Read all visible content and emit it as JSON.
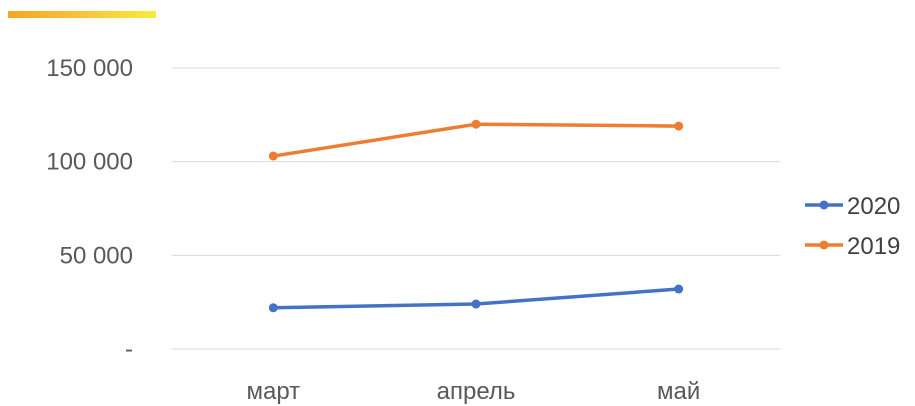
{
  "chart_data": {
    "type": "line",
    "categories": [
      "март",
      "апрель",
      "май"
    ],
    "series": [
      {
        "name": "2020",
        "values": [
          22000,
          24000,
          32000
        ],
        "color": "#4472C4"
      },
      {
        "name": "2019",
        "values": [
          103000,
          120000,
          119000
        ],
        "color": "#ED7D31"
      }
    ],
    "y_ticks": [
      0,
      50000,
      100000,
      150000
    ],
    "y_tick_labels": [
      "-",
      "50 000",
      "100 000",
      "150 000"
    ],
    "ylim": [
      0,
      150000
    ],
    "grid": true,
    "legend": "right",
    "accent_gradient": [
      "#F5A623",
      "#F5EE3A"
    ]
  }
}
